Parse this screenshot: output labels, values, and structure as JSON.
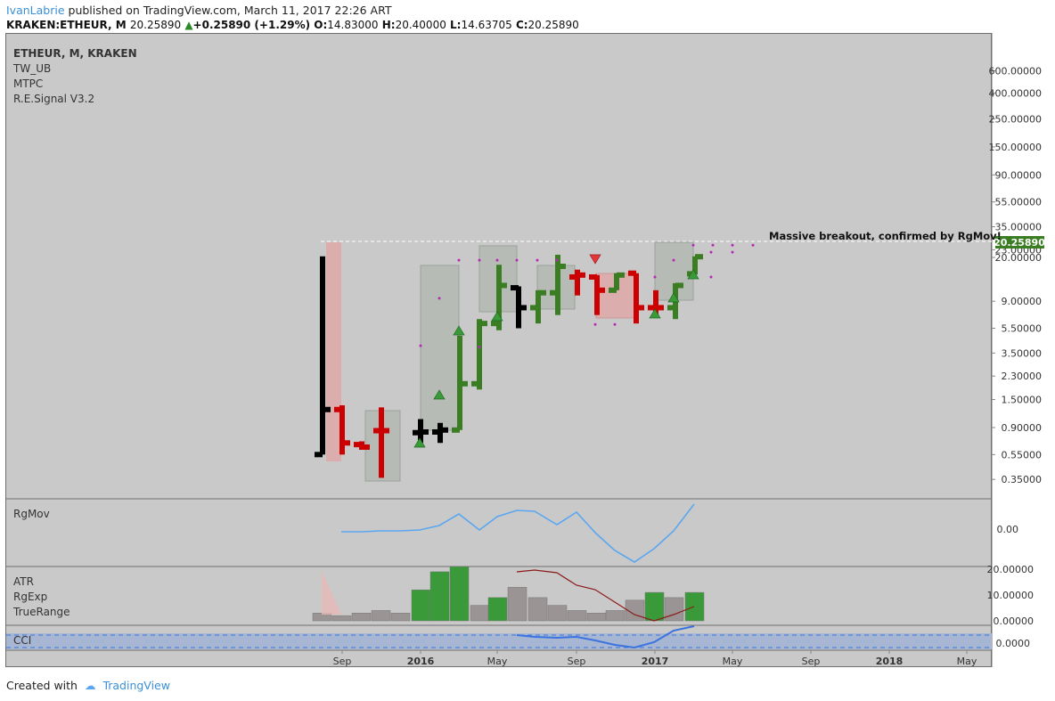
{
  "header": {
    "author": "IvanLabrie",
    "published": "published on TradingView.com, March 11, 2017 22:26 ART"
  },
  "quote": {
    "symbol": "KRAKEN:ETHEUR, M",
    "last": "20.25890",
    "change": "+0.25890 (+1.29%)",
    "o_label": "O:",
    "o": "14.83000",
    "h_label": "H:",
    "h": "20.40000",
    "l_label": "L:",
    "l": "14.63705",
    "c_label": "C:",
    "c": "20.25890"
  },
  "main_legend": {
    "title": "ETHEUR, M, KRAKEN",
    "studies": [
      "TW_UB",
      "MTPC",
      "R.E.Signal V3.2"
    ]
  },
  "annotation": "Massive breakout, confirmed by RgMov!",
  "rgmov_legend": "RgMov",
  "atr_legend": [
    "ATR",
    "RgExp",
    "TrueRange"
  ],
  "cci_legend": "CCI",
  "footer": {
    "created": "Created with",
    "brand": "TradingView"
  },
  "colors": {
    "bull": "#3a7d23",
    "bear": "#cc0000",
    "neutral": "#000000",
    "price_tag": "#3a7d23",
    "rgmov_line": "#5aa7f0",
    "cci_line": "#3b74e0",
    "atr_up": "#3a9a3a",
    "atr_down": "#9a9494",
    "rgexp_line": "#8b1a1a",
    "signal_dot": "#b42ab4"
  },
  "chart_data": {
    "type": "bar",
    "scale": "log",
    "price_axis_labels": [
      "600.00000",
      "400.00000",
      "250.00000",
      "150.00000",
      "90.00000",
      "55.00000",
      "35.00000",
      "23.00000",
      "20.00000",
      "9.00000",
      "5.50000",
      "3.50000",
      "2.30000",
      "1.50000",
      "0.90000",
      "0.55000",
      "0.35000"
    ],
    "last_price_label": "20.25890",
    "time_labels": [
      "Sep",
      "2016",
      "May",
      "Sep",
      "2017",
      "May",
      "Sep",
      "2018",
      "May"
    ],
    "ohlc": [
      {
        "date": "2015-08",
        "o": 0.55,
        "h": 20.4,
        "l": 0.55,
        "c": 1.25,
        "color": "neutral"
      },
      {
        "date": "2015-09",
        "o": 1.25,
        "h": 1.35,
        "l": 0.55,
        "c": 0.68,
        "color": "bear"
      },
      {
        "date": "2015-10",
        "o": 0.66,
        "h": 0.7,
        "l": 0.6,
        "c": 0.63,
        "color": "bear"
      },
      {
        "date": "2015-11",
        "o": 0.85,
        "h": 1.3,
        "l": 0.36,
        "c": 0.85,
        "color": "bear"
      },
      {
        "date": "2016-01",
        "o": 0.82,
        "h": 1.05,
        "l": 0.68,
        "c": 0.83,
        "color": "neutral"
      },
      {
        "date": "2016-02",
        "o": 0.83,
        "h": 0.98,
        "l": 0.68,
        "c": 0.86,
        "color": "neutral"
      },
      {
        "date": "2016-03",
        "o": 0.86,
        "h": 4.8,
        "l": 0.86,
        "c": 2.0,
        "color": "bull"
      },
      {
        "date": "2016-04",
        "o": 2.0,
        "h": 6.5,
        "l": 1.8,
        "c": 6.0,
        "color": "bull"
      },
      {
        "date": "2016-05",
        "o": 6.0,
        "h": 17.5,
        "l": 5.3,
        "c": 12.0,
        "color": "bull"
      },
      {
        "date": "2016-06",
        "o": 11.5,
        "h": 11.8,
        "l": 5.5,
        "c": 8.0,
        "color": "neutral"
      },
      {
        "date": "2016-07",
        "o": 8.0,
        "h": 11.0,
        "l": 6.0,
        "c": 10.5,
        "color": "bull"
      },
      {
        "date": "2016-08",
        "o": 10.5,
        "h": 21.0,
        "l": 7.0,
        "c": 17.0,
        "color": "bull"
      },
      {
        "date": "2016-09",
        "o": 14.0,
        "h": 16.0,
        "l": 10.0,
        "c": 14.5,
        "color": "bear"
      },
      {
        "date": "2016-10",
        "o": 14.0,
        "h": 14.5,
        "l": 7.0,
        "c": 11.0,
        "color": "bear"
      },
      {
        "date": "2016-11",
        "o": 11.0,
        "h": 15.0,
        "l": 11.0,
        "c": 14.5,
        "color": "bull"
      },
      {
        "date": "2016-12",
        "o": 15.0,
        "h": 15.0,
        "l": 6.0,
        "c": 8.0,
        "color": "bear"
      },
      {
        "date": "2017-01",
        "o": 8.0,
        "h": 11.0,
        "l": 7.0,
        "c": 8.0,
        "color": "bear"
      },
      {
        "date": "2017-02",
        "o": 8.0,
        "h": 12.5,
        "l": 6.5,
        "c": 12.0,
        "color": "bull"
      },
      {
        "date": "2017-03",
        "o": 14.83,
        "h": 20.4,
        "l": 14.63705,
        "c": 20.2589,
        "color": "bull"
      }
    ],
    "rgmov": {
      "label": "RgMov",
      "axis_label": "0.00"
    },
    "atr": {
      "axis_labels": [
        "20.00000",
        "10.00000",
        "0.00000"
      ]
    },
    "cci": {
      "axis_label": "0.0000"
    }
  }
}
